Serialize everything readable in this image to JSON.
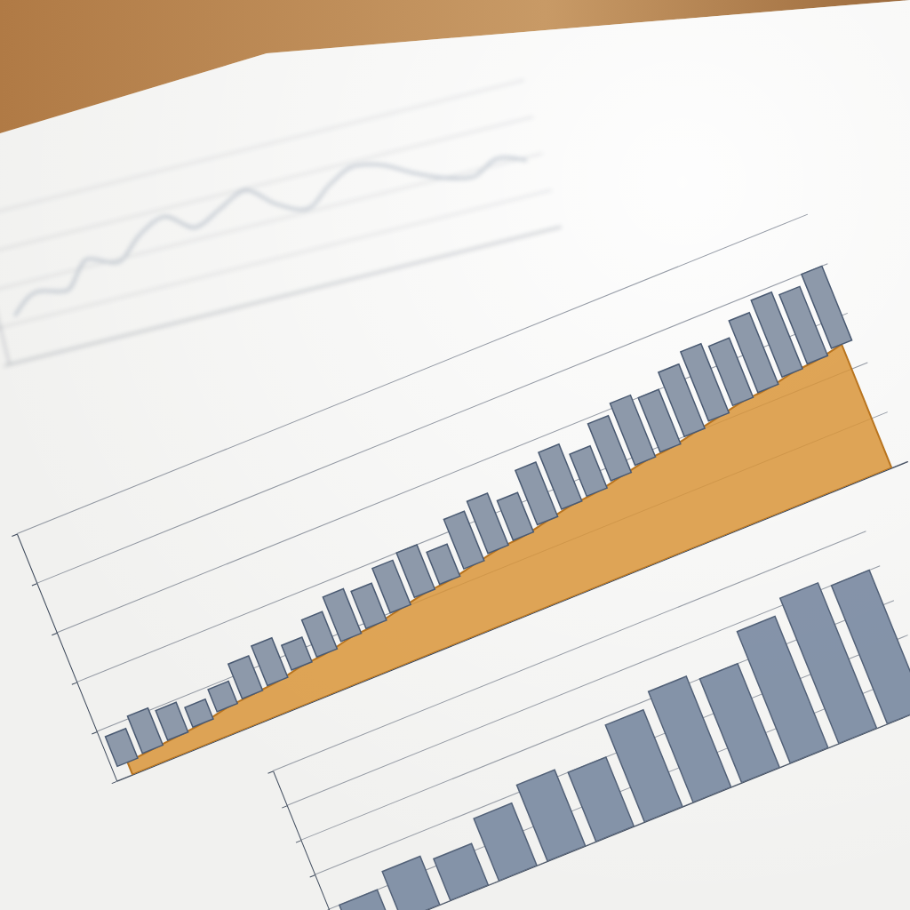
{
  "chart_data": [
    {
      "type": "line",
      "categories": [
        null,
        null,
        null,
        null,
        null,
        null,
        null,
        null,
        null,
        null,
        null,
        null,
        null,
        null,
        null,
        null,
        null,
        null,
        null,
        null
      ],
      "values": [
        30,
        42,
        38,
        55,
        48,
        62,
        70,
        58,
        66,
        74,
        60,
        52,
        64,
        72,
        68,
        58,
        50,
        46,
        54,
        48
      ],
      "color": "#8e9bad",
      "ylim": [
        0,
        100
      ],
      "yticks": [
        0,
        25,
        50,
        75,
        100
      ],
      "grid": true,
      "tick_labels": false
    },
    {
      "type": "bar",
      "stacked": true,
      "categories": [
        null,
        null,
        null,
        null,
        null,
        null,
        null,
        null,
        null,
        null,
        null,
        null,
        null,
        null,
        null,
        null,
        null,
        null,
        null,
        null,
        null,
        null,
        null,
        null,
        null,
        null,
        null,
        null,
        null,
        null
      ],
      "series": [
        {
          "type": "area",
          "color": "#d9953a",
          "values": [
            5,
            6,
            7,
            8,
            10,
            11,
            12,
            14,
            15,
            17,
            18,
            20,
            22,
            23,
            25,
            27,
            28,
            30,
            32,
            33,
            35,
            37,
            38,
            40,
            42,
            44,
            45,
            47,
            48,
            50
          ]
        },
        {
          "type": "bar",
          "color": "#8d99aa",
          "values": [
            12,
            15,
            12,
            8,
            9,
            14,
            16,
            10,
            15,
            18,
            15,
            18,
            18,
            13,
            20,
            21,
            16,
            22,
            23,
            17,
            23,
            25,
            22,
            26,
            28,
            24,
            29,
            31,
            28,
            30
          ]
        }
      ],
      "ylim": [
        0,
        100
      ],
      "yticks": [
        0,
        20,
        40,
        60,
        80,
        100
      ],
      "grid": true,
      "tick_labels": false
    },
    {
      "type": "bar",
      "categories": [
        null,
        null,
        null,
        null,
        null,
        null,
        null,
        null,
        null,
        null,
        null,
        null
      ],
      "values": [
        10,
        14,
        12,
        18,
        22,
        20,
        28,
        32,
        30,
        38,
        42,
        40
      ],
      "color": "#7f8ea5",
      "ylim": [
        0,
        50
      ],
      "yticks": [
        0,
        10,
        20,
        30,
        40,
        50
      ],
      "grid": true,
      "tick_labels": false
    }
  ]
}
